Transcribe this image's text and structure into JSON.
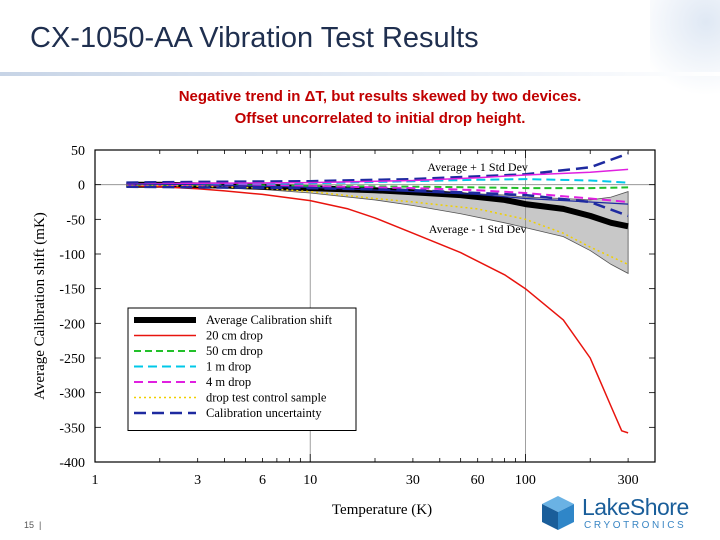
{
  "slide": {
    "title": "CX-1050-AA Vibration Test Results",
    "subtitle_line1": "Negative trend in ΔT, but results skewed by two devices.",
    "subtitle_line2": "Offset uncorrelated to initial drop height.",
    "page_number": "15",
    "logo_text": "LakeShore",
    "logo_subtext": "CRYOTRONICS"
  },
  "chart_data": {
    "type": "line",
    "xlabel": "Temperature (K)",
    "ylabel": "Average Calibration shift (mK)",
    "xscale": "log",
    "xlim": [
      1,
      400
    ],
    "ylim": [
      -400,
      50
    ],
    "xticks": [
      1,
      3,
      6,
      10,
      30,
      60,
      100,
      300
    ],
    "yticks": [
      50,
      0,
      -50,
      -100,
      -150,
      -200,
      -250,
      -300,
      -350,
      -400
    ],
    "grid": "major lines at 10 and 100 K, 0 mK",
    "legend_position": "lower-left",
    "annotations": [
      "Average + 1 Std Dev",
      "Average - 1 Std Dev"
    ],
    "band": {
      "x": [
        1.4,
        2,
        3,
        4,
        6,
        10,
        20,
        30,
        50,
        80,
        100,
        150,
        200,
        250,
        300
      ],
      "upper": [
        1,
        1,
        1,
        1,
        0,
        -1,
        -5,
        -8,
        -12,
        -15,
        -18,
        -20,
        -22,
        -18,
        -10
      ],
      "lower": [
        -2,
        -3,
        -4,
        -5,
        -7,
        -12,
        -22,
        -30,
        -42,
        -55,
        -62,
        -75,
        -95,
        -115,
        -128
      ]
    },
    "series": [
      {
        "name": "Average Calibration shift",
        "color": "#000000",
        "width": 6,
        "dash": "",
        "x": [
          1.4,
          2,
          3,
          4,
          6,
          10,
          20,
          30,
          50,
          80,
          100,
          150,
          200,
          250,
          300
        ],
        "y": [
          0,
          0,
          -1,
          -1,
          -3,
          -5,
          -8,
          -11,
          -15,
          -22,
          -28,
          -35,
          -45,
          -55,
          -60
        ]
      },
      {
        "name": "20 cm drop",
        "color": "#e8140e",
        "width": 1.5,
        "dash": "",
        "x": [
          1.4,
          2,
          3,
          4,
          6,
          10,
          15,
          20,
          30,
          50,
          80,
          100,
          150,
          200,
          250,
          280,
          300
        ],
        "y": [
          -1,
          -3,
          -6,
          -9,
          -14,
          -23,
          -35,
          -48,
          -70,
          -98,
          -130,
          -150,
          -195,
          -250,
          -320,
          -355,
          -358
        ]
      },
      {
        "name": "50 cm drop",
        "color": "#22c02a",
        "width": 2,
        "dash": "7,4",
        "x": [
          1.4,
          2,
          3,
          6,
          10,
          30,
          60,
          100,
          200,
          300
        ],
        "y": [
          0,
          0,
          0,
          -1,
          -2,
          -3,
          -4,
          -5,
          -5,
          -4
        ]
      },
      {
        "name": "1 m drop",
        "color": "#00c8e8",
        "width": 2,
        "dash": "9,5",
        "x": [
          1.4,
          2,
          3,
          6,
          10,
          30,
          60,
          100,
          200,
          300
        ],
        "y": [
          0,
          0,
          1,
          1,
          2,
          5,
          7,
          8,
          6,
          3
        ]
      },
      {
        "name": "4 m drop",
        "color": "#e020e0",
        "width": 2,
        "dash": "9,5",
        "x": [
          1.4,
          2,
          3,
          6,
          10,
          30,
          60,
          100,
          200,
          300
        ],
        "y": [
          0,
          0,
          -1,
          -1,
          -2,
          -5,
          -8,
          -12,
          -20,
          -25
        ]
      },
      {
        "name": "drop test control sample",
        "color": "#f0d000",
        "width": 1.5,
        "dash": "2,3",
        "x": [
          1.4,
          2,
          3,
          6,
          10,
          20,
          30,
          60,
          100,
          150,
          200,
          300
        ],
        "y": [
          0,
          -1,
          -2,
          -5,
          -10,
          -20,
          -25,
          -35,
          -50,
          -70,
          -90,
          -115
        ]
      },
      {
        "name": "Calibration uncertainty",
        "color": "#1e2aa0",
        "width": 2.5,
        "dash": "12,6",
        "x": [
          1.4,
          3,
          10,
          30,
          100,
          200,
          300
        ],
        "y": [
          3,
          4,
          5,
          8,
          15,
          25,
          45
        ]
      },
      {
        "name": "",
        "color": "#1e2aa0",
        "width": 2.5,
        "dash": "12,6",
        "legend": false,
        "x": [
          1.4,
          3,
          10,
          30,
          100,
          200,
          300
        ],
        "y": [
          -3,
          -4,
          -5,
          -8,
          -15,
          -25,
          -45
        ]
      },
      {
        "name": "",
        "color": "#e020e0",
        "width": 1.5,
        "dash": "",
        "legend": false,
        "x": [
          1.4,
          3,
          10,
          30,
          60,
          100,
          200,
          300
        ],
        "y": [
          1,
          2,
          3,
          6,
          10,
          14,
          18,
          22
        ]
      },
      {
        "name": "",
        "color": "#1e2aa0",
        "width": 1.2,
        "dash": "",
        "legend": false,
        "x": [
          1.4,
          3,
          10,
          30,
          60,
          100,
          200,
          300
        ],
        "y": [
          1,
          0,
          -4,
          -10,
          -14,
          -20,
          -25,
          -28
        ]
      }
    ]
  }
}
